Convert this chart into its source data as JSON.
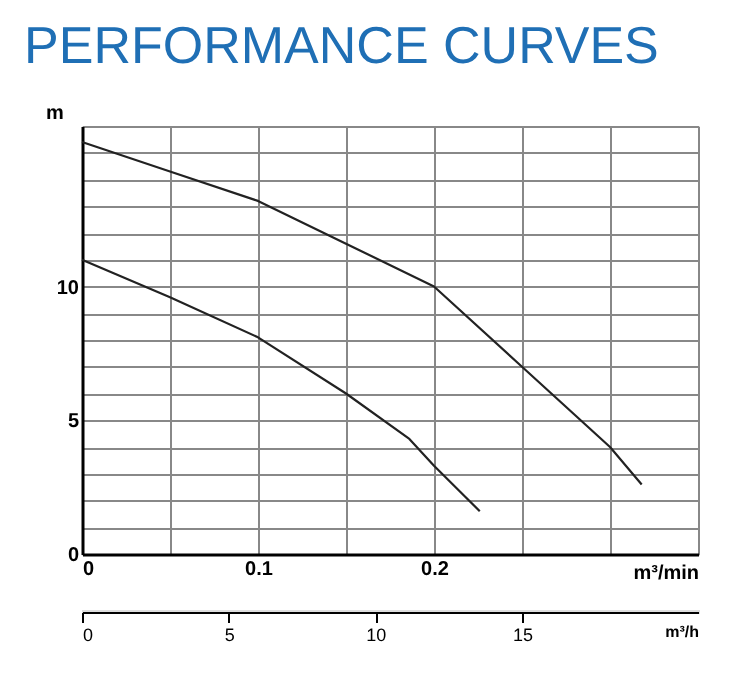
{
  "chart_data": {
    "type": "line",
    "title": "PERFORMANCE CURVES",
    "xlabel": "m³/min",
    "ylabel": "m",
    "x2label": "m³/h",
    "xlim": [
      0,
      0.35
    ],
    "xticks": [
      0,
      {
        "value": 0.05,
        "label": null
      },
      0.1,
      {
        "value": 0.15,
        "label": null
      },
      0.2,
      {
        "value": 0.25,
        "label": null
      },
      {
        "value": 0.3,
        "label": null
      },
      {
        "value": 0.35,
        "label": null
      }
    ],
    "ylim": [
      0,
      16
    ],
    "yticks": [
      0,
      {
        "value": 1,
        "label": null
      },
      {
        "value": 2,
        "label": null
      },
      {
        "value": 3,
        "label": null
      },
      {
        "value": 4,
        "label": null
      },
      5,
      {
        "value": 6,
        "label": null
      },
      {
        "value": 7,
        "label": null
      },
      {
        "value": 8,
        "label": null
      },
      {
        "value": 9,
        "label": null
      },
      10,
      {
        "value": 11,
        "label": null
      },
      {
        "value": 12,
        "label": null
      },
      {
        "value": 13,
        "label": null
      },
      {
        "value": 14,
        "label": null
      },
      {
        "value": 15,
        "label": null
      },
      {
        "value": 16,
        "label": null
      }
    ],
    "x2lim": [
      0,
      21
    ],
    "x2ticks": [
      0,
      5,
      10,
      15
    ],
    "grid": true,
    "legend": false,
    "marker": "none",
    "line_style": "solid",
    "series": [
      {
        "color": "#222222",
        "x": [
          0,
          0.05,
          0.1,
          0.15,
          0.2,
          0.25,
          0.3,
          0.318
        ],
        "values": [
          15.4,
          14.3,
          13.2,
          11.6,
          10.0,
          7.0,
          4.0,
          2.6
        ]
      },
      {
        "color": "#222222",
        "x": [
          0,
          0.05,
          0.1,
          0.15,
          0.186,
          0.2,
          0.226
        ],
        "values": [
          11.0,
          9.6,
          8.1,
          6.0,
          4.3,
          3.3,
          1.6
        ]
      }
    ]
  }
}
